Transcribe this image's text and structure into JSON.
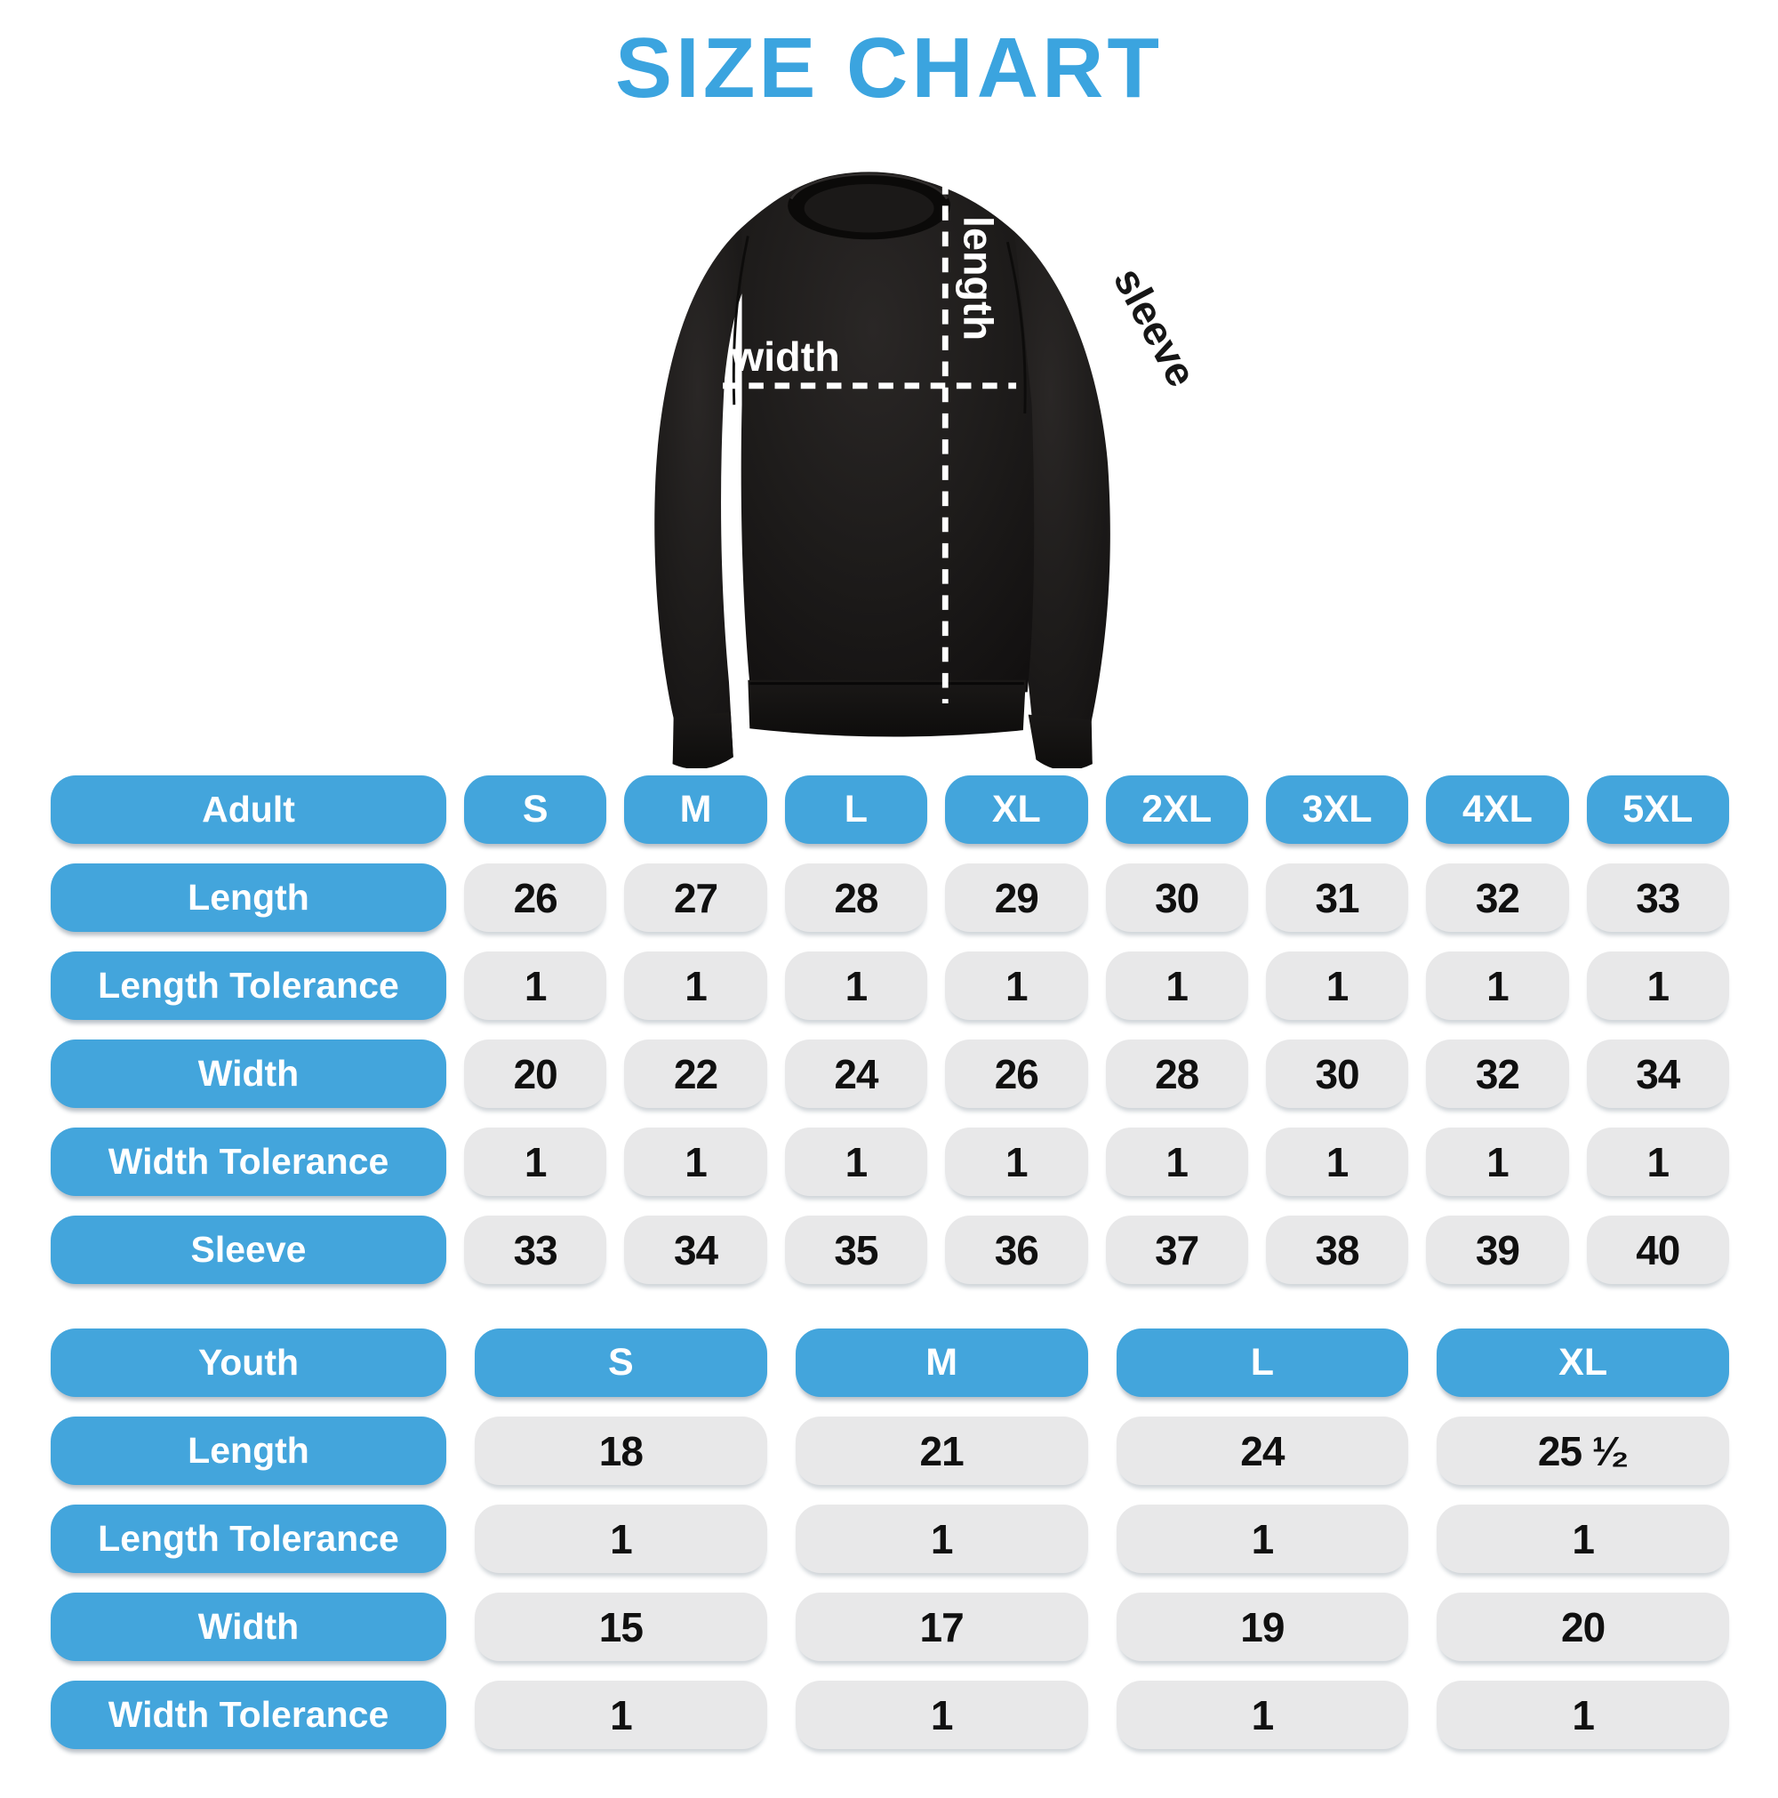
{
  "title": "SIZE CHART",
  "colors": {
    "title_blue": "#3BA4DF",
    "accent_blue": "#43A5DC",
    "cell_gray": "#E8E8E9",
    "value_text": "#101010",
    "shirt_black": "#1D1B1A",
    "annotation_white": "#FFFFFF"
  },
  "diagram": {
    "length_label": "length",
    "width_label": "width",
    "sleeve_label": "sleeve"
  },
  "adult_table": {
    "header": [
      "Adult",
      "S",
      "M",
      "L",
      "XL",
      "2XL",
      "3XL",
      "4XL",
      "5XL"
    ],
    "rows": [
      {
        "label": "Length",
        "values": [
          "26",
          "27",
          "28",
          "29",
          "30",
          "31",
          "32",
          "33"
        ]
      },
      {
        "label": "Length Tolerance",
        "values": [
          "1",
          "1",
          "1",
          "1",
          "1",
          "1",
          "1",
          "1"
        ]
      },
      {
        "label": "Width",
        "values": [
          "20",
          "22",
          "24",
          "26",
          "28",
          "30",
          "32",
          "34"
        ]
      },
      {
        "label": "Width Tolerance",
        "values": [
          "1",
          "1",
          "1",
          "1",
          "1",
          "1",
          "1",
          "1"
        ]
      },
      {
        "label": "Sleeve",
        "values": [
          "33",
          "34",
          "35",
          "36",
          "37",
          "38",
          "39",
          "40"
        ]
      }
    ]
  },
  "youth_table": {
    "header": [
      "Youth",
      "S",
      "M",
      "L",
      "XL"
    ],
    "rows": [
      {
        "label": "Length",
        "values": [
          "18",
          "21",
          "24",
          "25 ¹⁄₂"
        ]
      },
      {
        "label": "Length Tolerance",
        "values": [
          "1",
          "1",
          "1",
          "1"
        ]
      },
      {
        "label": "Width",
        "values": [
          "15",
          "17",
          "19",
          "20"
        ]
      },
      {
        "label": "Width Tolerance",
        "values": [
          "1",
          "1",
          "1",
          "1"
        ]
      }
    ]
  },
  "chart_data": [
    {
      "type": "table",
      "title": "Adult size chart (inches)",
      "columns": [
        "Adult",
        "S",
        "M",
        "L",
        "XL",
        "2XL",
        "3XL",
        "4XL",
        "5XL"
      ],
      "rows": [
        [
          "Length",
          26,
          27,
          28,
          29,
          30,
          31,
          32,
          33
        ],
        [
          "Length Tolerance",
          1,
          1,
          1,
          1,
          1,
          1,
          1,
          1
        ],
        [
          "Width",
          20,
          22,
          24,
          26,
          28,
          30,
          32,
          34
        ],
        [
          "Width Tolerance",
          1,
          1,
          1,
          1,
          1,
          1,
          1,
          1
        ],
        [
          "Sleeve",
          33,
          34,
          35,
          36,
          37,
          38,
          39,
          40
        ]
      ]
    },
    {
      "type": "table",
      "title": "Youth size chart (inches)",
      "columns": [
        "Youth",
        "S",
        "M",
        "L",
        "XL"
      ],
      "rows": [
        [
          "Length",
          18,
          21,
          24,
          25.5
        ],
        [
          "Length Tolerance",
          1,
          1,
          1,
          1
        ],
        [
          "Width",
          15,
          17,
          19,
          20
        ],
        [
          "Width Tolerance",
          1,
          1,
          1,
          1
        ]
      ]
    }
  ]
}
